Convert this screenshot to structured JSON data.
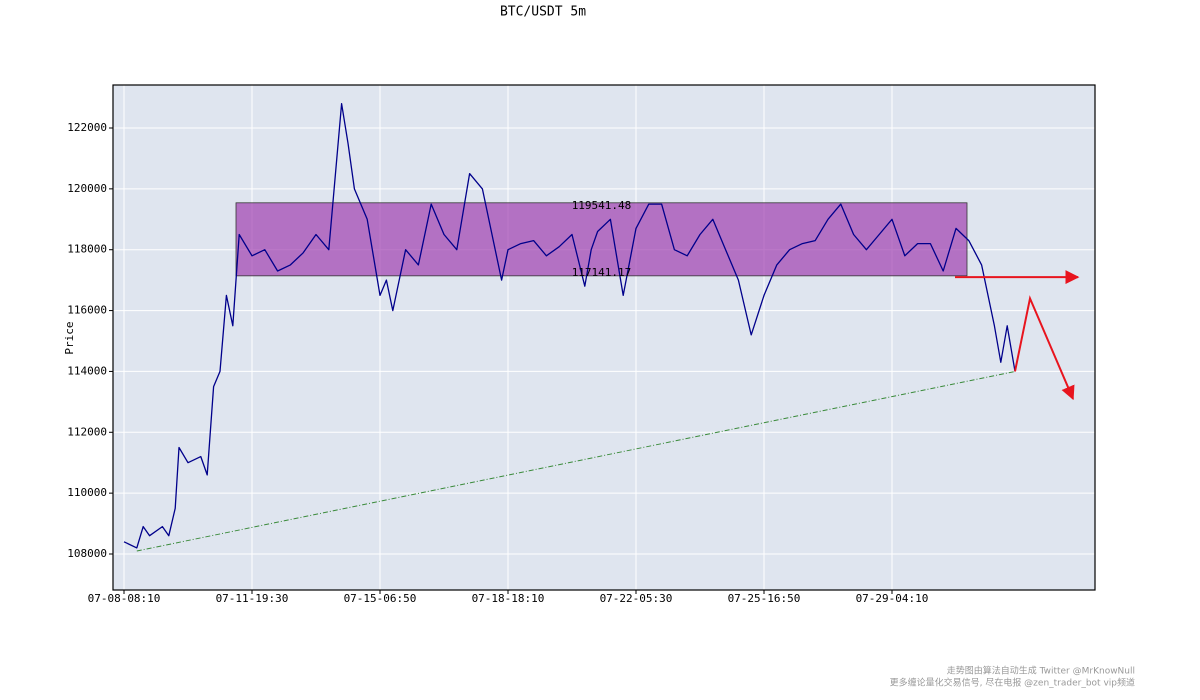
{
  "chart_data": {
    "type": "line",
    "title": "BTC/USDT 5m",
    "y_label": "Price",
    "color": "#00008b",
    "grid": true,
    "x": [
      0,
      100,
      150,
      200,
      300,
      350,
      400,
      430,
      500,
      600,
      650,
      700,
      750,
      800,
      850,
      900,
      1000,
      1100,
      1200,
      1300,
      1400,
      1500,
      1600,
      1700,
      1750,
      1800,
      1900,
      2000,
      2050,
      2100,
      2200,
      2300,
      2400,
      2500,
      2600,
      2700,
      2800,
      2900,
      2950,
      3000,
      3100,
      3200,
      3300,
      3400,
      3500,
      3600,
      3650,
      3700,
      3800,
      3900,
      4000,
      4100,
      4200,
      4300,
      4400,
      4500,
      4600,
      4700,
      4800,
      4900,
      5000,
      5100,
      5200,
      5300,
      5400,
      5500,
      5600,
      5700,
      5800,
      5900,
      6000,
      6100,
      6200,
      6300,
      6400,
      6500,
      6600,
      6700,
      6800,
      6850,
      6900,
      6961
    ],
    "values": [
      108400,
      108200,
      108900,
      108600,
      108900,
      108600,
      109500,
      111500,
      111000,
      111200,
      110600,
      113500,
      114000,
      116500,
      115500,
      118500,
      117800,
      118000,
      117300,
      117500,
      117900,
      118500,
      118000,
      122800,
      121500,
      120000,
      119000,
      116500,
      117000,
      116000,
      118000,
      117500,
      119500,
      118500,
      118000,
      120500,
      120000,
      118000,
      117000,
      118000,
      118200,
      118300,
      117800,
      118100,
      118500,
      116800,
      118000,
      118600,
      119000,
      116500,
      118700,
      119500,
      119500,
      118000,
      117800,
      118500,
      119000,
      118000,
      117000,
      115200,
      116500,
      117500,
      118000,
      118200,
      118300,
      119000,
      119500,
      118500,
      118000,
      118500,
      119000,
      117800,
      118200,
      118200,
      117300,
      118700,
      118300,
      117500,
      115500,
      114300,
      115500,
      114000
    ],
    "xlim": [
      -86,
      7586
    ],
    "ylim": [
      106817,
      123413
    ],
    "xticks": [
      {
        "value": 0,
        "label": "07-08-08:10"
      },
      {
        "value": 1000,
        "label": "07-11-19:30"
      },
      {
        "value": 2000,
        "label": "07-15-06:50"
      },
      {
        "value": 3000,
        "label": "07-18-18:10"
      },
      {
        "value": 4000,
        "label": "07-22-05:30"
      },
      {
        "value": 5000,
        "label": "07-25-16:50"
      },
      {
        "value": 6000,
        "label": "07-29-04:10"
      }
    ],
    "yticks": [
      108000,
      110000,
      112000,
      114000,
      116000,
      118000,
      120000,
      122000
    ],
    "zone": {
      "x": [
        875,
        6586
      ],
      "y": [
        117141.17,
        119541.48
      ],
      "color": "#a040b0"
    },
    "trendline": {
      "x": [
        100,
        6961
      ],
      "y": [
        108100,
        114000
      ],
      "color": "#3a8a3a"
    },
    "arrows": [
      {
        "x": [
          6492,
          7453
        ],
        "y": [
          117100,
          117100
        ],
        "color": "#e8141e"
      },
      {
        "x": [
          6961,
          7078,
          7414
        ],
        "y": [
          114000,
          116400,
          113100
        ],
        "color": "#e8141e"
      }
    ]
  },
  "footer": [
    "走势图由算法自动生成  Twitter @MrKnowNull",
    "更多缠论量化交易信号, 尽在电报 @zen_trader_bot vip频道"
  ]
}
